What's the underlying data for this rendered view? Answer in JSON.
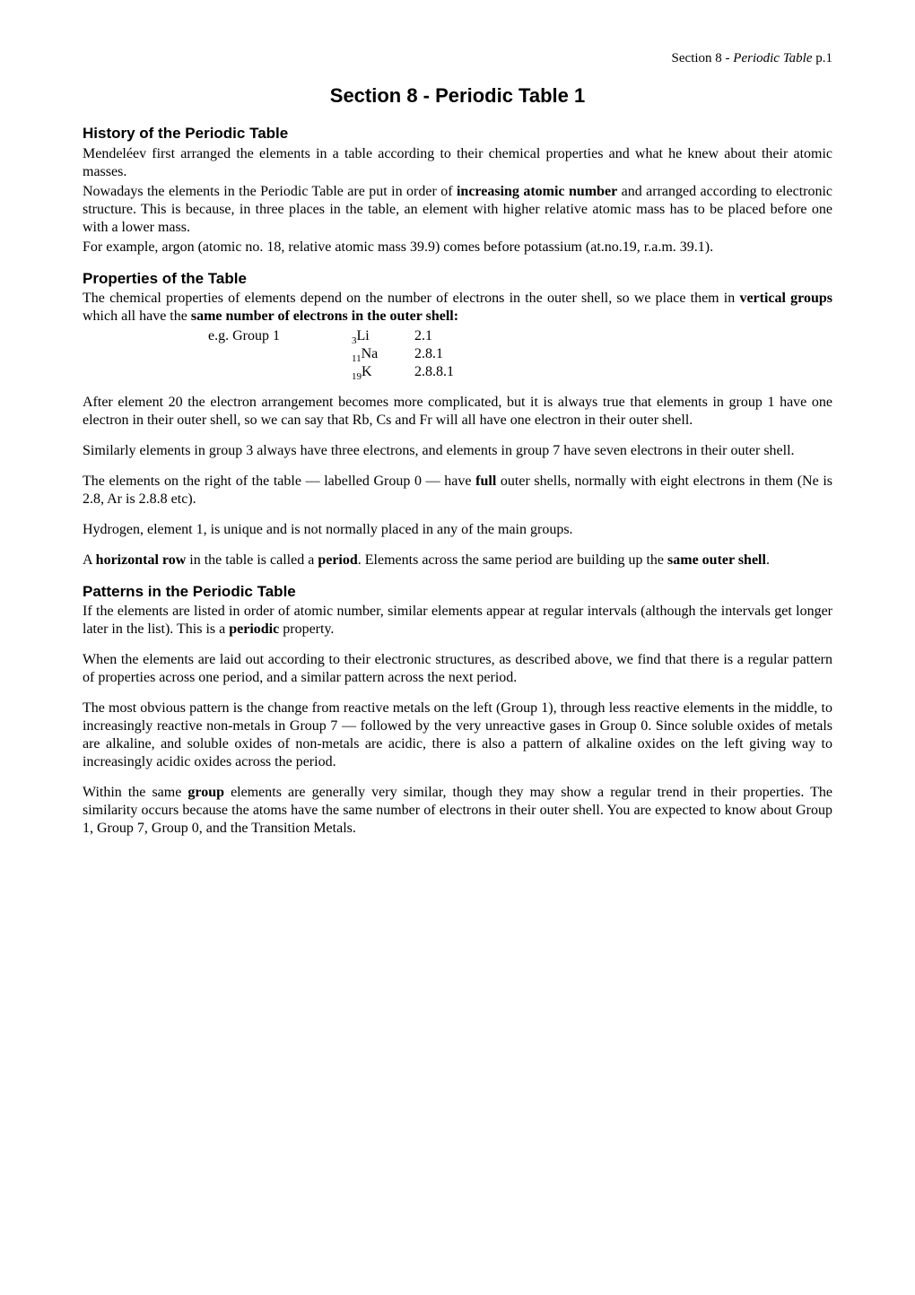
{
  "header": {
    "left": "Section 8 - ",
    "italic": "Periodic Table",
    "right": "  p.1"
  },
  "title": "Section 8 - Periodic Table 1",
  "history": {
    "heading": "History of the Periodic Table",
    "p1": "Mendeléev first arranged the elements in a table according to their chemical properties and what he knew about their atomic masses.",
    "p2a": "Nowadays the elements in the Periodic Table are put in order of ",
    "p2b": "increasing atomic number",
    "p2c": " and arranged according to electronic structure. This is because, in three places in the table, an element with higher relative atomic mass has to be placed before one with a lower mass.",
    "p3": "For example, argon (atomic no. 18, relative atomic mass 39.9) comes before potassium (at.no.19, r.a.m. 39.1)."
  },
  "properties": {
    "heading": "Properties of the Table",
    "p1a": "The chemical properties of elements depend on the number of electrons in the outer shell, so we place them in ",
    "p1b": "vertical groups",
    "p1c": " which all have the ",
    "p1d": "same number of electrons in the outer shell:",
    "eg_label": "e.g. Group 1",
    "rows": [
      {
        "sub": "3",
        "sym": "Li",
        "val": "2.1"
      },
      {
        "sub": "11",
        "sym": "Na",
        "val": "2.8.1"
      },
      {
        "sub": "19",
        "sym": "K",
        "val": "2.8.8.1"
      }
    ],
    "p2": "After element 20 the electron arrangement becomes more complicated, but it is always true that elements in group 1 have one electron in their outer shell, so we can say that Rb, Cs and Fr will all have one electron in their outer shell.",
    "p3": "Similarly elements in group 3 always have three electrons, and elements in group 7 have seven electrons in their outer shell.",
    "p4a": "The elements on the right of the table — labelled Group 0 — have ",
    "p4b": "full",
    "p4c": " outer shells, normally with eight electrons in them (Ne is 2.8, Ar is 2.8.8 etc).",
    "p5": "Hydrogen, element 1, is unique and is not normally placed in any of the main groups.",
    "p6a": "A ",
    "p6b": "horizontal row",
    "p6c": " in the table is called a ",
    "p6d": "period",
    "p6e": ". Elements across the same period are building up the ",
    "p6f": "same outer shell",
    "p6g": "."
  },
  "patterns": {
    "heading": "Patterns in the Periodic Table",
    "p1a": "If the elements are listed in order of atomic number, similar elements appear at regular intervals (although the intervals get longer later in the list). This is a ",
    "p1b": "periodic",
    "p1c": " property.",
    "p2": "When the elements are laid out according to their electronic structures, as described above, we find that there is a regular pattern of properties across one period, and a similar pattern across the next period.",
    "p3": "The most obvious pattern is the change from reactive metals on the left (Group 1), through less reactive elements in the middle, to increasingly reactive non-metals in Group 7 — followed by the very unreactive gases in Group 0. Since soluble oxides of metals are alkaline, and soluble oxides of non-metals are acidic, there is also a pattern of alkaline oxides on the left giving way to increasingly acidic oxides across the period.",
    "p4a": "Within the same ",
    "p4b": "group",
    "p4c": " elements are generally very similar, though they may show a regular trend in their properties. The similarity occurs because the atoms have the same number of electrons in their outer shell. You are expected to know about Group 1, Group 7, Group 0, and the Transition Metals."
  }
}
